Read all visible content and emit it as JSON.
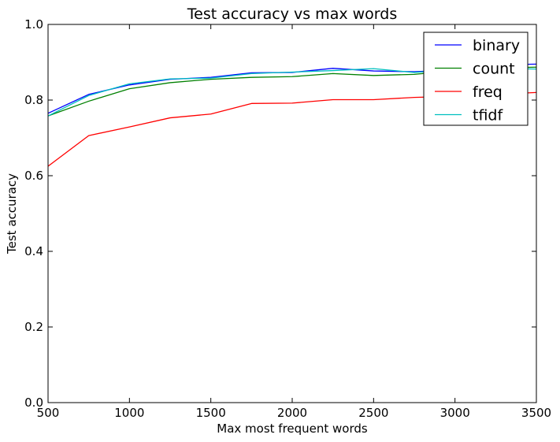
{
  "chart_data": {
    "type": "line",
    "title": "Test accuracy vs max words",
    "xlabel": "Max most frequent words",
    "ylabel": "Test accuracy",
    "xlim": [
      500,
      3500
    ],
    "ylim": [
      0.0,
      1.0
    ],
    "xticks": [
      500,
      1000,
      1500,
      2000,
      2500,
      3000,
      3500
    ],
    "xtick_labels": [
      "500",
      "1000",
      "1500",
      "2000",
      "2500",
      "3000",
      "3500"
    ],
    "yticks": [
      0.0,
      0.2,
      0.4,
      0.6,
      0.8,
      1.0
    ],
    "ytick_labels": [
      "0.0",
      "0.2",
      "0.4",
      "0.6",
      "0.8",
      "1.0"
    ],
    "grid": false,
    "legend_position": "top-right",
    "x": [
      500,
      750,
      1000,
      1250,
      1500,
      1750,
      2000,
      2250,
      2500,
      2750,
      3000,
      3250,
      3500
    ],
    "series": [
      {
        "name": "binary",
        "color": "#0000ff",
        "values": [
          0.765,
          0.815,
          0.84,
          0.855,
          0.86,
          0.872,
          0.873,
          0.884,
          0.877,
          0.875,
          0.88,
          0.893,
          0.895
        ]
      },
      {
        "name": "count",
        "color": "#008000",
        "values": [
          0.758,
          0.797,
          0.83,
          0.846,
          0.855,
          0.86,
          0.862,
          0.87,
          0.865,
          0.868,
          0.878,
          0.885,
          0.887
        ]
      },
      {
        "name": "freq",
        "color": "#ff0000",
        "values": [
          0.625,
          0.706,
          0.729,
          0.753,
          0.763,
          0.791,
          0.792,
          0.801,
          0.801,
          0.807,
          0.81,
          0.815,
          0.82
        ]
      },
      {
        "name": "tfidf",
        "color": "#00bfbf",
        "values": [
          0.758,
          0.812,
          0.843,
          0.856,
          0.858,
          0.87,
          0.874,
          0.878,
          0.883,
          0.873,
          0.88,
          0.884,
          0.882
        ]
      }
    ]
  }
}
